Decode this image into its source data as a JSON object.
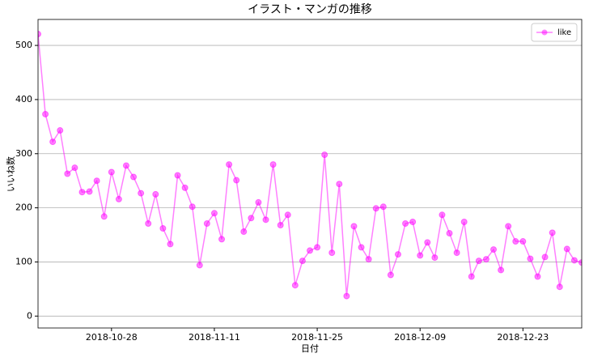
{
  "chart_data": {
    "type": "line",
    "title": "イラスト・マンガの推移",
    "x_label": "日付",
    "y_label": "いいね数",
    "x": [
      "2018-10-18",
      "2018-10-19",
      "2018-10-20",
      "2018-10-21",
      "2018-10-22",
      "2018-10-23",
      "2018-10-24",
      "2018-10-25",
      "2018-10-26",
      "2018-10-27",
      "2018-10-28",
      "2018-10-29",
      "2018-10-30",
      "2018-10-31",
      "2018-11-01",
      "2018-11-02",
      "2018-11-03",
      "2018-11-04",
      "2018-11-05",
      "2018-11-06",
      "2018-11-07",
      "2018-11-08",
      "2018-11-09",
      "2018-11-10",
      "2018-11-11",
      "2018-11-12",
      "2018-11-13",
      "2018-11-14",
      "2018-11-15",
      "2018-11-16",
      "2018-11-17",
      "2018-11-18",
      "2018-11-19",
      "2018-11-20",
      "2018-11-21",
      "2018-11-22",
      "2018-11-23",
      "2018-11-24",
      "2018-11-25",
      "2018-11-26",
      "2018-11-27",
      "2018-11-28",
      "2018-11-29",
      "2018-11-30",
      "2018-12-01",
      "2018-12-02",
      "2018-12-03",
      "2018-12-04",
      "2018-12-05",
      "2018-12-06",
      "2018-12-07",
      "2018-12-08",
      "2018-12-09",
      "2018-12-10",
      "2018-12-11",
      "2018-12-12",
      "2018-12-13",
      "2018-12-14",
      "2018-12-15",
      "2018-12-16",
      "2018-12-17",
      "2018-12-18",
      "2018-12-19",
      "2018-12-20",
      "2018-12-21",
      "2018-12-22",
      "2018-12-23",
      "2018-12-24",
      "2018-12-25",
      "2018-12-26",
      "2018-12-27",
      "2018-12-28",
      "2018-12-29",
      "2018-12-30",
      "2018-12-31"
    ],
    "series": [
      {
        "name": "like",
        "color": "#ff00ff",
        "values": [
          521,
          373,
          322,
          343,
          263,
          274,
          229,
          230,
          250,
          184,
          266,
          216,
          278,
          257,
          227,
          171,
          225,
          162,
          133,
          260,
          237,
          202,
          94,
          171,
          190,
          142,
          280,
          251,
          156,
          181,
          210,
          178,
          280,
          168,
          187,
          57,
          102,
          121,
          127,
          298,
          117,
          244,
          37,
          166,
          127,
          105,
          199,
          202,
          76,
          114,
          171,
          174,
          112,
          136,
          108,
          187,
          153,
          117,
          174,
          73,
          102,
          105,
          123,
          85,
          166,
          138,
          138,
          106,
          73,
          109,
          154,
          54,
          124,
          103,
          99
        ]
      }
    ],
    "xlim": [
      "2018-10-18",
      "2018-12-31"
    ],
    "xticks": [
      "2018-10-28",
      "2018-11-11",
      "2018-11-25",
      "2018-12-09",
      "2018-12-23"
    ],
    "ylim": [
      -22,
      548
    ],
    "yticks": [
      0,
      100,
      200,
      300,
      400,
      500
    ],
    "grid": true,
    "legend": "upper right"
  }
}
